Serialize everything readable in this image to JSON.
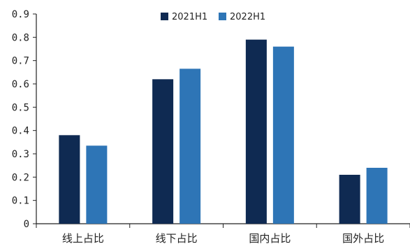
{
  "chart_data": {
    "type": "bar",
    "title": "",
    "xlabel": "",
    "ylabel": "",
    "categories": [
      "线上占比",
      "线下占比",
      "国内占比",
      "国外占比"
    ],
    "series": [
      {
        "name": "2021H1",
        "values": [
          0.38,
          0.62,
          0.79,
          0.21
        ],
        "color": "#0f2a52"
      },
      {
        "name": "2022H1",
        "values": [
          0.335,
          0.665,
          0.76,
          0.24
        ],
        "color": "#2e75b6"
      }
    ],
    "ylim": [
      0,
      0.9
    ],
    "yticks": [
      "0",
      "0.1",
      "0.2",
      "0.3",
      "0.4",
      "0.5",
      "0.6",
      "0.7",
      "0.8",
      "0.9"
    ],
    "grid": false,
    "legend_position": "top-center"
  }
}
